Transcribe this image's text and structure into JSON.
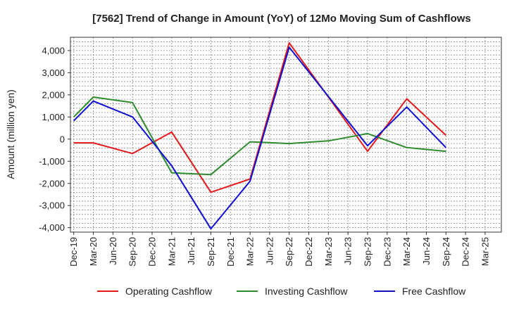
{
  "chart_data": {
    "type": "line",
    "title": "[7562]  Trend of Change in Amount (YoY) of 12Mo Moving Sum of Cashflows",
    "xlabel": "",
    "ylabel": "Amount (million yen)",
    "ylim": [
      -4200,
      4600
    ],
    "yticks": [
      4000,
      3000,
      2000,
      1000,
      0,
      -1000,
      -2000,
      -3000,
      -4000
    ],
    "ytick_labels": [
      "4,000",
      "3,000",
      "2,000",
      "1,000",
      "0",
      "-1,000",
      "-2,000",
      "-3,000",
      "-4,000"
    ],
    "x": [
      "Dec-19",
      "Mar-20",
      "Jun-20",
      "Sep-20",
      "Dec-20",
      "Mar-21",
      "Jun-21",
      "Sep-21",
      "Dec-21",
      "Mar-22",
      "Jun-22",
      "Sep-22",
      "Dec-22",
      "Mar-23",
      "Jun-23",
      "Sep-23",
      "Dec-23",
      "Mar-24",
      "Jun-24",
      "Sep-24",
      "Dec-24",
      "Mar-25"
    ],
    "grid": true,
    "legend_position": "bottom",
    "series": [
      {
        "name": "Operating Cashflow",
        "color": "#e31a1c",
        "values": [
          -170,
          -170,
          null,
          -650,
          null,
          320,
          null,
          -2400,
          null,
          -1800,
          null,
          4350,
          null,
          null,
          null,
          -550,
          null,
          1820,
          null,
          170,
          null,
          null
        ]
      },
      {
        "name": "Investing Cashflow",
        "color": "#2e8b2e",
        "values": [
          1000,
          1900,
          null,
          1650,
          null,
          -1520,
          null,
          -1600,
          null,
          -120,
          null,
          -200,
          null,
          -80,
          null,
          250,
          null,
          -380,
          null,
          -550,
          null,
          null
        ]
      },
      {
        "name": "Free Cashflow",
        "color": "#1010d0",
        "values": [
          830,
          1720,
          null,
          1000,
          null,
          -1200,
          null,
          -4050,
          null,
          -1900,
          null,
          4150,
          null,
          null,
          null,
          -300,
          null,
          1450,
          null,
          -380,
          null,
          null
        ]
      }
    ]
  }
}
